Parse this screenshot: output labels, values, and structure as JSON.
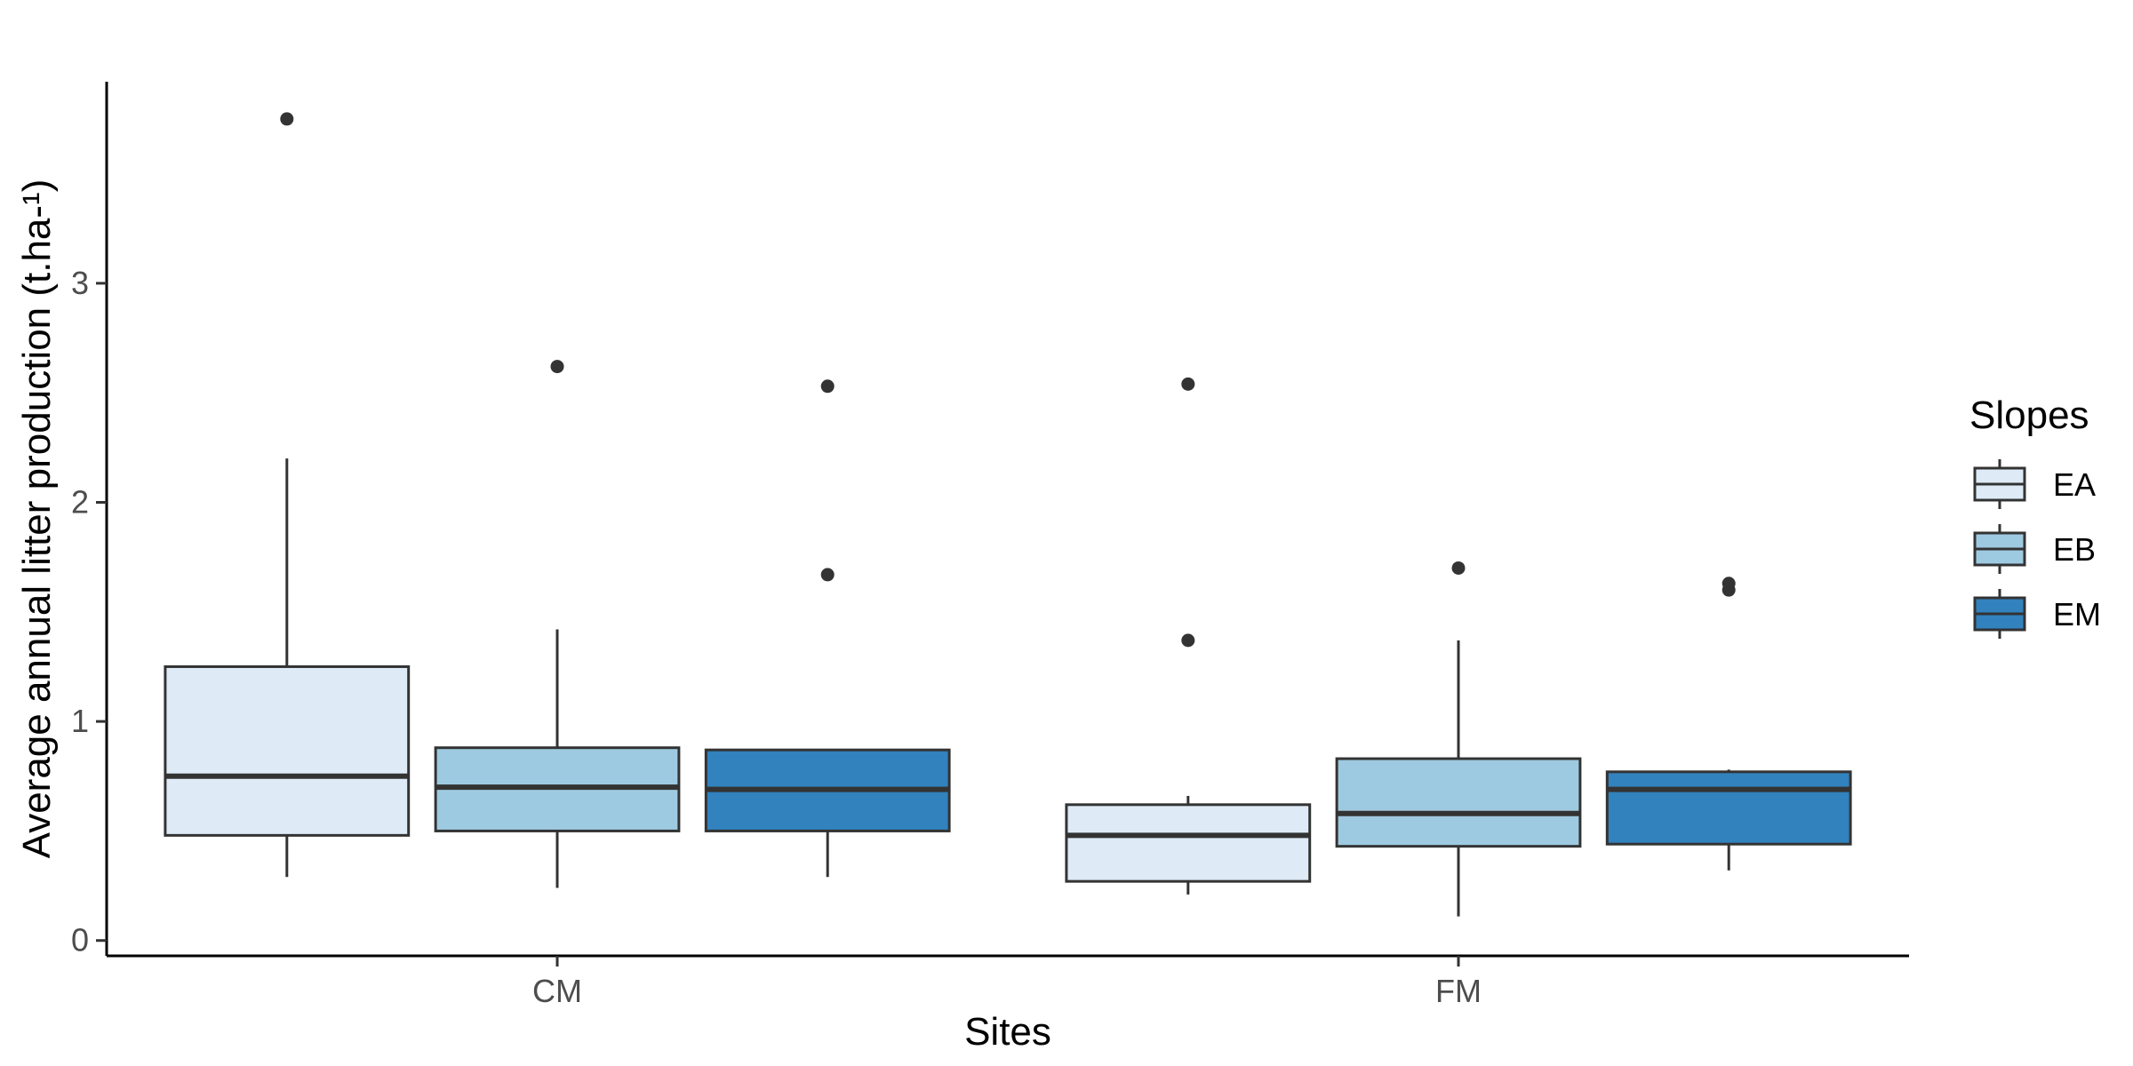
{
  "chart_data": {
    "type": "box",
    "xlabel": "Sites",
    "ylabel": "Average annual litter production (t.ha-¹)",
    "categories": [
      "CM",
      "FM"
    ],
    "ylim": [
      -0.07,
      3.92
    ],
    "y_ticks": [
      0,
      1,
      2,
      3
    ],
    "grid": false,
    "legend": {
      "title": "Slopes",
      "position": "right"
    },
    "series": [
      {
        "name": "EA",
        "color": "#deebf7",
        "boxes": [
          {
            "category": "CM",
            "whisker_low": 0.29,
            "q1": 0.48,
            "median": 0.75,
            "q3": 1.25,
            "whisker_high": 2.2,
            "outliers": [
              3.75
            ]
          },
          {
            "category": "FM",
            "whisker_low": 0.21,
            "q1": 0.27,
            "median": 0.48,
            "q3": 0.62,
            "whisker_high": 0.66,
            "outliers": [
              1.37,
              2.54
            ]
          }
        ]
      },
      {
        "name": "EB",
        "color": "#9ecae1",
        "boxes": [
          {
            "category": "CM",
            "whisker_low": 0.24,
            "q1": 0.5,
            "median": 0.7,
            "q3": 0.88,
            "whisker_high": 1.42,
            "outliers": [
              2.62
            ]
          },
          {
            "category": "FM",
            "whisker_low": 0.11,
            "q1": 0.43,
            "median": 0.58,
            "q3": 0.83,
            "whisker_high": 1.37,
            "outliers": [
              1.7
            ]
          }
        ]
      },
      {
        "name": "EM",
        "color": "#3182bd",
        "boxes": [
          {
            "category": "CM",
            "whisker_low": 0.29,
            "q1": 0.5,
            "median": 0.69,
            "q3": 0.87,
            "whisker_high": 0.87,
            "outliers": [
              1.67,
              2.53
            ]
          },
          {
            "category": "FM",
            "whisker_low": 0.32,
            "q1": 0.44,
            "median": 0.69,
            "q3": 0.77,
            "whisker_high": 0.78,
            "outliers": [
              1.6,
              1.63
            ]
          }
        ]
      }
    ]
  }
}
